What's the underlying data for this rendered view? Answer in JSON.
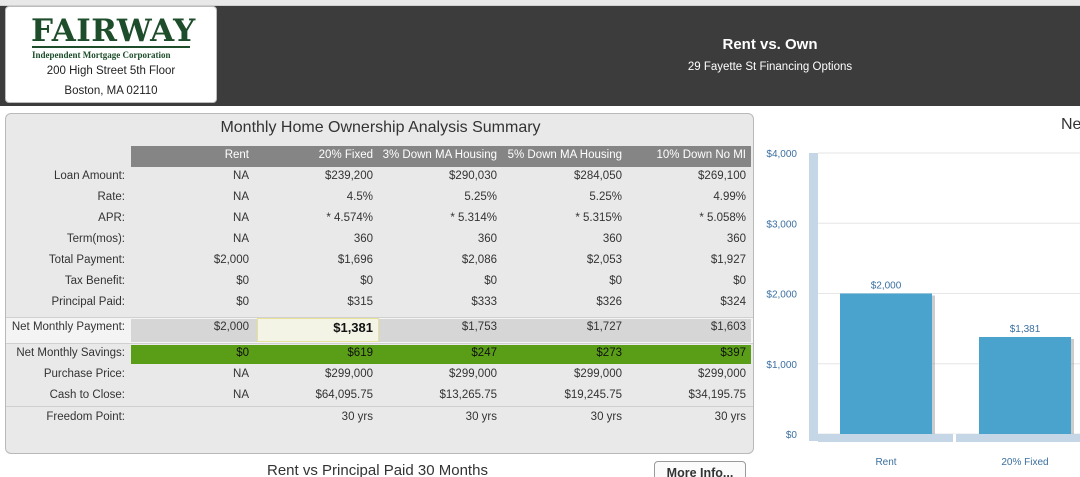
{
  "header": {
    "logo_text": "FAIRWAY",
    "logo_subtitle": "Independent Mortgage Corporation",
    "address_line1": "200 High Street 5th Floor",
    "address_line2": "Boston, MA 02110",
    "title": "Rent vs. Own",
    "subtitle": "29 Fayette St Financing Options"
  },
  "summary": {
    "title": "Monthly Home Ownership Analysis Summary",
    "columns": [
      "Rent",
      "20% Fixed",
      "3% Down MA Housing",
      "5% Down MA Housing",
      "10% Down No MI"
    ],
    "rows": [
      {
        "label": "Loan Amount:",
        "values": [
          "NA",
          "$239,200",
          "$290,030",
          "$284,050",
          "$269,100"
        ]
      },
      {
        "label": "Rate:",
        "values": [
          "NA",
          "4.5%",
          "5.25%",
          "5.25%",
          "4.99%"
        ]
      },
      {
        "label": "APR:",
        "values": [
          "NA",
          "* 4.574%",
          "* 5.314%",
          "* 5.315%",
          "* 5.058%"
        ]
      },
      {
        "label": "Term(mos):",
        "values": [
          "NA",
          "360",
          "360",
          "360",
          "360"
        ]
      },
      {
        "label": "Total Payment:",
        "values": [
          "$2,000",
          "$1,696",
          "$2,086",
          "$2,053",
          "$1,927"
        ]
      },
      {
        "label": "Tax Benefit:",
        "values": [
          "$0",
          "$0",
          "$0",
          "$0",
          "$0"
        ]
      },
      {
        "label": "Principal Paid:",
        "values": [
          "$0",
          "$315",
          "$333",
          "$326",
          "$324"
        ]
      },
      {
        "label": "Net Monthly Payment:",
        "values": [
          "$2,000",
          "$1,381",
          "$1,753",
          "$1,727",
          "$1,603"
        ]
      },
      {
        "label": "Net Monthly Savings:",
        "values": [
          "$0",
          "$619",
          "$247",
          "$273",
          "$397"
        ]
      },
      {
        "label": "Purchase Price:",
        "values": [
          "NA",
          "$299,000",
          "$299,000",
          "$299,000",
          "$299,000"
        ]
      },
      {
        "label": "Cash to Close:",
        "values": [
          "NA",
          "$64,095.75",
          "$13,265.75",
          "$19,245.75",
          "$34,195.75"
        ]
      },
      {
        "label": "Freedom Point:",
        "values": [
          "",
          "30 yrs",
          "30 yrs",
          "30 yrs",
          "30 yrs"
        ]
      }
    ]
  },
  "chart_title_partial": "Ne",
  "rvp_title": "Rent vs Principal Paid 30 Months",
  "more_info_label": "More Info...",
  "chart_data": {
    "type": "bar",
    "title": "Ne",
    "categories": [
      "Rent",
      "20% Fixed"
    ],
    "values": [
      2000,
      1381
    ],
    "data_labels": [
      "$2,000",
      "$1,381"
    ],
    "yticks": [
      "$0",
      "$1,000",
      "$2,000",
      "$3,000",
      "$4,000"
    ],
    "ylim": [
      0,
      4000
    ],
    "grid": true,
    "bar_color": "#4aa3cc"
  },
  "colors": {
    "header_bg": "#3c3c3c",
    "logo_green": "#1d4d2a",
    "header_band": "#858585",
    "savings_green": "#5a9e18",
    "bar_blue": "#4aa3cc",
    "axis_blue": "#c5d6e6"
  }
}
